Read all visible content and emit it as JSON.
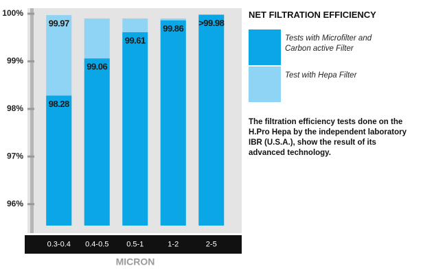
{
  "chart_data": {
    "type": "bar",
    "title": "NET FILTRATION EFFICIENCY",
    "xlabel": "MICRON",
    "categories": [
      "0.3-0.4",
      "0.4-0.5",
      "0.5-1",
      "1-2",
      "2-5"
    ],
    "series": [
      {
        "name": "Test with Hepa Filter",
        "color": "#8fd3f5",
        "values": [
          99.97,
          99.9,
          99.9,
          99.9,
          null
        ],
        "value_labels": [
          "99.97",
          null,
          null,
          null,
          null
        ]
      },
      {
        "name": "Tests with Microfilter and Carbon active Filter",
        "color": "#0aa6e6",
        "values": [
          98.28,
          99.06,
          99.61,
          99.86,
          99.98
        ],
        "value_labels": [
          "98.28",
          "99.06",
          "99.61",
          "99.86",
          ">99.98"
        ]
      }
    ],
    "ylim": [
      95.55,
      100
    ],
    "yticks": [
      {
        "value": 96,
        "label": "96%"
      },
      {
        "value": 97,
        "label": "97%"
      },
      {
        "value": 98,
        "label": "98%"
      },
      {
        "value": 99,
        "label": "99%"
      },
      {
        "value": 100,
        "label": "100%"
      }
    ],
    "note": "The filtration efficiency tests done on the H.Pro Hepa by the independent laboratory IBR (U.S.A.), show the result of its advanced technology."
  }
}
